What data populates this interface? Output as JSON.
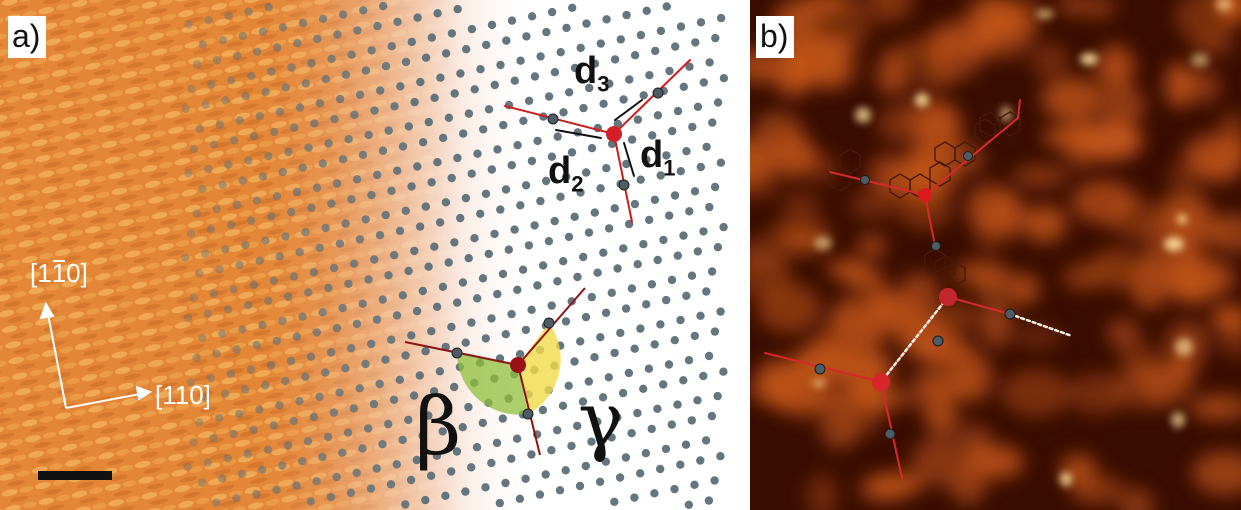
{
  "figure": {
    "panel_a": {
      "label": "a)",
      "direction_vertical": {
        "prefix": "[1",
        "barred": "1",
        "suffix": "0]"
      },
      "direction_horizontal": "[110]",
      "distance_labels": [
        {
          "letter": "d",
          "sub": "3"
        },
        {
          "letter": "d",
          "sub": "2"
        },
        {
          "letter": "d",
          "sub": "1"
        }
      ],
      "angle_labels": {
        "beta": "β",
        "gamma": "γ"
      },
      "colors": {
        "stm_surface": "#e08a3a",
        "lattice_dot": "#5d6f78",
        "bond_line": "#cc1e1e",
        "center_atom": "#d21f2a",
        "angle_beta": "#8fbf3a",
        "angle_gamma": "#f0dc4a"
      }
    },
    "panel_b": {
      "label": "b)",
      "colors": {
        "background": "#3a0d02",
        "molecule": "#d9621c",
        "highlight": "#ffe08a",
        "bond_line": "#d42a2a"
      }
    }
  }
}
